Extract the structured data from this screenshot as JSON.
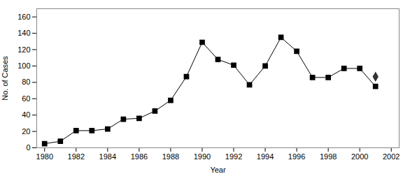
{
  "chart_data": {
    "type": "line",
    "x": [
      1980,
      1981,
      1982,
      1983,
      1984,
      1985,
      1986,
      1987,
      1988,
      1989,
      1990,
      1991,
      1992,
      1993,
      1994,
      1995,
      1996,
      1997,
      1998,
      1999,
      2000,
      2001
    ],
    "series": [
      {
        "type": "line",
        "color": "#000000",
        "marker": "square",
        "values": [
          5,
          8,
          21,
          21,
          23,
          35,
          36,
          45,
          58,
          87,
          129,
          108,
          101,
          77,
          100,
          135,
          118,
          86,
          86,
          97,
          97,
          75
        ]
      },
      {
        "type": "scatter",
        "color": "#333333",
        "marker": "diamond",
        "values": [
          null,
          null,
          null,
          null,
          null,
          null,
          null,
          null,
          null,
          null,
          null,
          null,
          null,
          null,
          null,
          null,
          null,
          null,
          null,
          null,
          null,
          87
        ]
      }
    ],
    "xlabel": "Year",
    "ylabel": "No. of Cases",
    "xlim": [
      1979.5,
      2002.5
    ],
    "xticks": [
      1980,
      1982,
      1984,
      1986,
      1988,
      1990,
      1992,
      1994,
      1996,
      1998,
      2000,
      2002
    ],
    "ylim": [
      0,
      170
    ],
    "yticks": [
      0,
      20,
      40,
      60,
      80,
      100,
      120,
      140,
      160
    ],
    "grid": false
  }
}
